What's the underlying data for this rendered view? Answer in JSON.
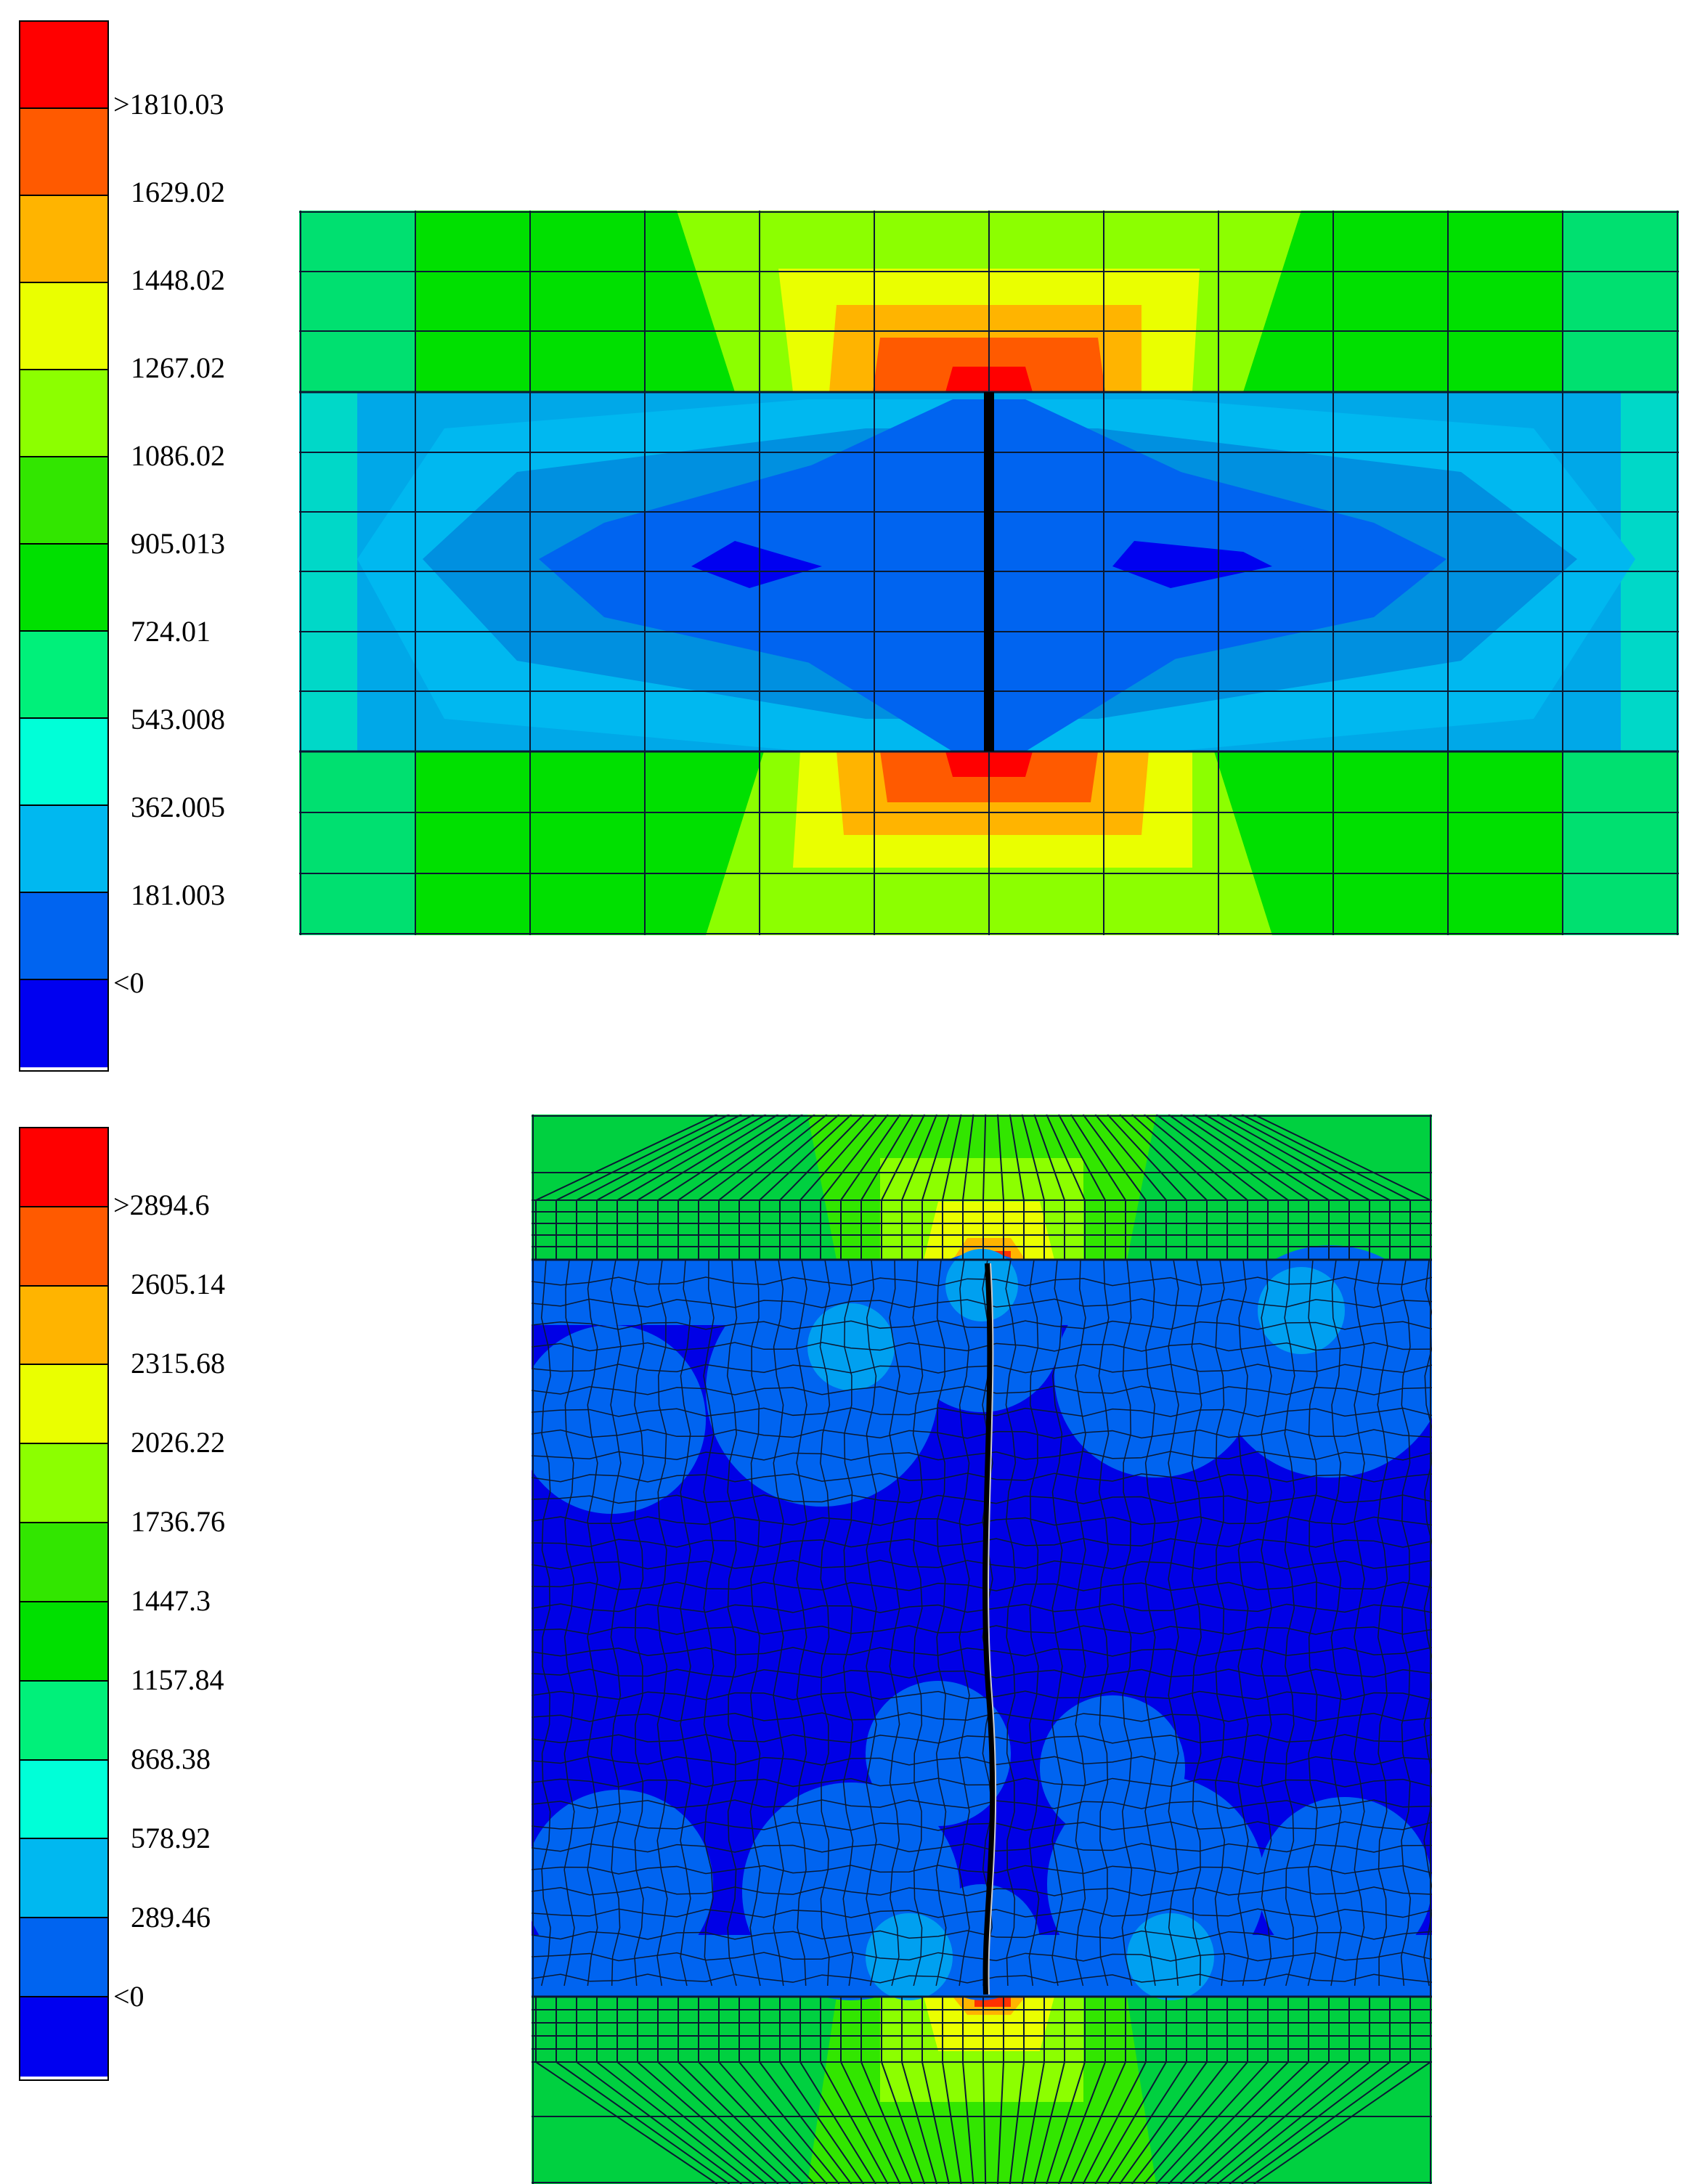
{
  "colors": {
    "bands": [
      "#ff0000",
      "#ff5a00",
      "#ffb400",
      "#eaff00",
      "#8cff00",
      "#32e600",
      "#00e000",
      "#00f07a",
      "#00ffd8",
      "#00b8f0",
      "#0064f0",
      "#0000f0"
    ],
    "mesh_line": "#0a1a33",
    "crack": "#000000"
  },
  "top_legend": {
    "labels": [
      ">1810.03",
      "1629.02",
      "1448.02",
      "1267.02",
      "1086.02",
      "905.013",
      "724.01",
      "543.008",
      "362.005",
      "181.003",
      "<0"
    ]
  },
  "bottom_legend": {
    "labels": [
      ">2894.6",
      "2605.14",
      "2315.68",
      "2026.22",
      "1736.76",
      "1447.3",
      "1157.84",
      "868.38",
      "578.92",
      "289.46",
      "<0"
    ]
  }
}
